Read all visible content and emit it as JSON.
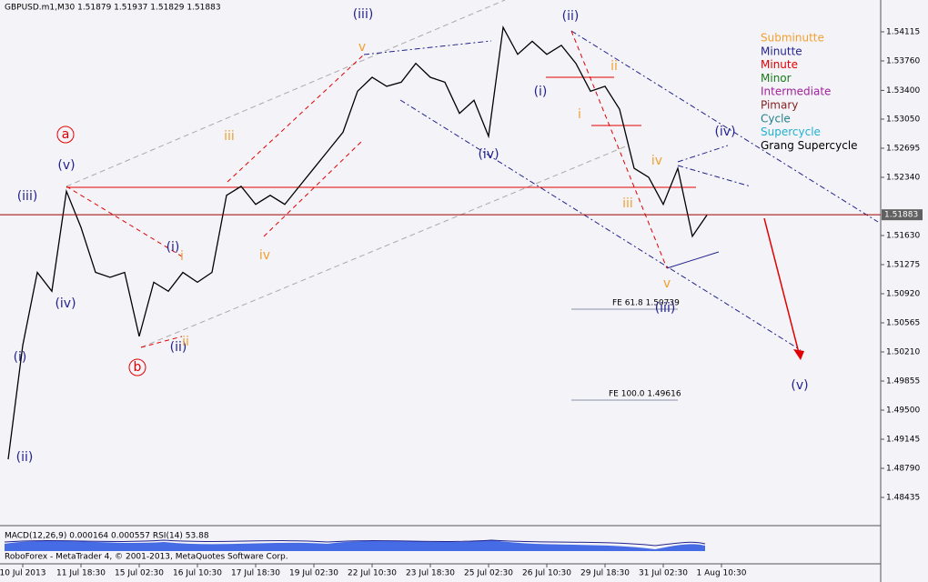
{
  "chart_data": {
    "type": "line",
    "title": "GBPUSD.m1,M30  1.51879 1.51937 1.51829 1.51883",
    "categories": [
      null,
      "10 Jul 2013",
      null,
      null,
      null,
      "11 Jul 18:30",
      null,
      null,
      null,
      "15 Jul 02:30",
      null,
      null,
      null,
      "16 Jul 10:30",
      null,
      null,
      null,
      "17 Jul 18:30",
      null,
      null,
      null,
      "19 Jul 02:30",
      null,
      null,
      null,
      "22 Jul 10:30",
      null,
      null,
      null,
      "23 Jul 18:30",
      null,
      null,
      null,
      "25 Jul 02:30",
      null,
      null,
      null,
      "26 Jul 10:30",
      null,
      null,
      null,
      "29 Jul 18:30",
      null,
      null,
      null,
      "31 Jul 02:30",
      null,
      null,
      null,
      "1 Aug 10:30"
    ],
    "series": [
      {
        "name": "GBPUSD",
        "color": "#000000",
        "values": [
          1.489,
          1.5029,
          1.5118,
          1.5095,
          1.5217,
          1.5173,
          1.5118,
          1.5112,
          1.5118,
          1.504,
          1.5106,
          1.5095,
          1.5118,
          1.5106,
          1.5118,
          1.5212,
          1.5223,
          1.5201,
          1.5212,
          1.5201,
          1.5223,
          1.5245,
          1.5267,
          1.5289,
          1.5339,
          1.5356,
          1.5345,
          1.535,
          1.5373,
          1.5356,
          1.535,
          1.5312,
          1.5328,
          1.5284,
          1.5417,
          1.5384,
          1.54,
          1.5384,
          1.5395,
          1.5373,
          1.5339,
          1.5345,
          1.5317,
          1.5245,
          1.5234,
          1.5201,
          1.5245,
          1.5162,
          1.5188,
          null
        ]
      }
    ],
    "ylim": [
      1.48091,
      1.54503
    ],
    "yticks": [
      1.54115,
      {
        "value": 1.5376,
        "label": "1.53760"
      },
      {
        "value": 1.534,
        "label": "1.53400"
      },
      {
        "value": 1.5305,
        "label": "1.53050"
      },
      1.52695,
      {
        "value": 1.5234,
        "label": "1.52340"
      },
      {
        "value": 1.5163,
        "label": "1.51630"
      },
      1.51275,
      {
        "value": 1.5092,
        "label": "1.50920"
      },
      1.50565,
      {
        "value": 1.5021,
        "label": "1.50210"
      },
      1.49855,
      {
        "value": 1.495,
        "label": "1.49500"
      },
      1.49145,
      {
        "value": 1.4879,
        "label": "1.48790"
      },
      1.48435
    ],
    "last_price": 1.51883,
    "annotations": [
      {
        "text": "(ii)",
        "color": "#23238e"
      },
      {
        "text": "(i)",
        "color": "#23238e"
      },
      {
        "text": "(iii)",
        "color": "#23238e"
      },
      {
        "text": "(iv)",
        "color": "#23238e"
      },
      {
        "text": "(v)",
        "color": "#23238e"
      },
      {
        "text": "a",
        "color": "#e00000",
        "circled": true
      },
      {
        "text": "b",
        "color": "#e00000",
        "circled": true
      },
      {
        "text": "(i)",
        "color": "#23238e"
      },
      {
        "text": "(ii)",
        "color": "#23238e"
      },
      {
        "text": "i",
        "color": "#f0a030"
      },
      {
        "text": "ii",
        "color": "#f0a030"
      },
      {
        "text": "iii",
        "color": "#f0a030"
      },
      {
        "text": "iv",
        "color": "#f0a030"
      },
      {
        "text": "v",
        "color": "#f0a030"
      },
      {
        "text": "(iii)",
        "color": "#23238e"
      },
      {
        "text": "(iv)",
        "color": "#23238e"
      },
      {
        "text": "(ii)",
        "color": "#23238e"
      },
      {
        "text": "(i)",
        "color": "#23238e"
      },
      {
        "text": "i",
        "color": "#f0a030"
      },
      {
        "text": "ii",
        "color": "#f0a030"
      },
      {
        "text": "iii",
        "color": "#f0a030"
      },
      {
        "text": "iv",
        "color": "#f0a030"
      },
      {
        "text": "v",
        "color": "#f0a030"
      },
      {
        "text": "(iii)",
        "color": "#23238e"
      },
      {
        "text": "(iv)",
        "color": "#23238e"
      },
      {
        "text": "(v)",
        "color": "#23238e"
      }
    ],
    "fib_labels": [
      "FE 61.8 1.50739",
      "FE 100.0 1.49616"
    ],
    "wave_degrees": [
      {
        "name": "Subminutte",
        "color": "#f0a030"
      },
      {
        "name": "Minutte",
        "color": "#23238e"
      },
      {
        "name": "Minute",
        "color": "#e00000"
      },
      {
        "name": "Minor",
        "color": "#1a7a1a"
      },
      {
        "name": "Intermediate",
        "color": "#a0209a"
      },
      {
        "name": "Pimary",
        "color": "#8a2020"
      },
      {
        "name": "Cycle",
        "color": "#20808a"
      },
      {
        "name": "Supercycle",
        "color": "#20b0d0"
      },
      {
        "name": "Grang Supercycle",
        "color": "#000000"
      }
    ],
    "indicator_label": "MACD(12,26,9) 0.000164 0.000557 RSI(14) 53.88",
    "footer": "RoboForex - MetaTrader 4, © 2001-2013, MetaQuotes Software Corp."
  }
}
